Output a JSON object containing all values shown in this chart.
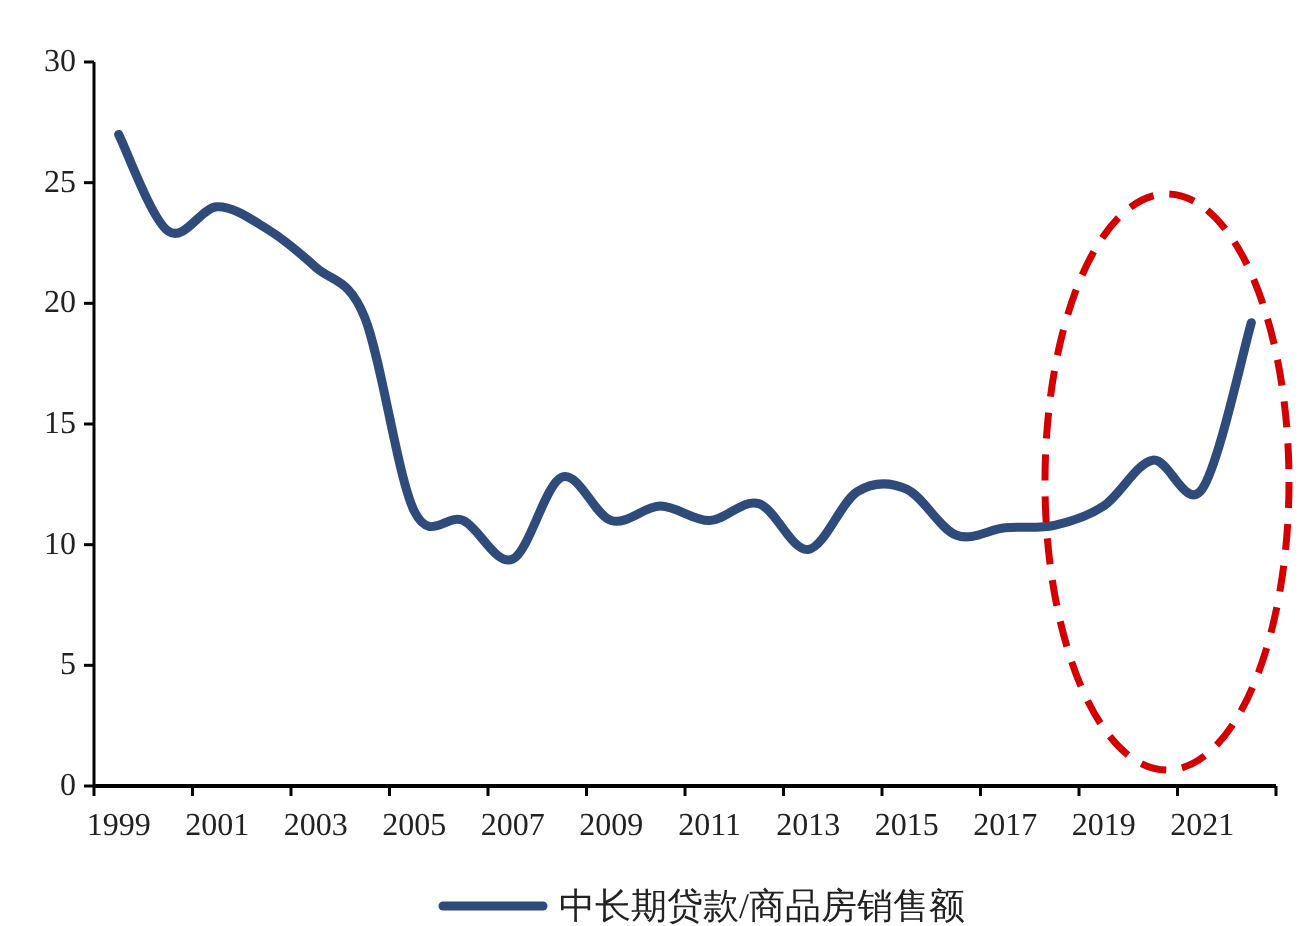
{
  "chart_data": {
    "type": "line",
    "categories": [
      "1999",
      null,
      "2001",
      null,
      "2003",
      null,
      "2005",
      null,
      "2007",
      null,
      "2009",
      null,
      "2011",
      null,
      "2013",
      null,
      "2015",
      null,
      "2017",
      null,
      "2019",
      null,
      "2021",
      null
    ],
    "series": [
      {
        "name": "中长期贷款/商品房销售额",
        "color": "#2f4b7c",
        "values": [
          27.0,
          23.0,
          24.0,
          23.1,
          21.5,
          19.4,
          11.4,
          11.0,
          9.4,
          12.8,
          11.0,
          11.6,
          11.0,
          11.7,
          9.8,
          12.2,
          12.3,
          10.4,
          10.7,
          10.8,
          11.6,
          13.5,
          12.3,
          19.2
        ]
      }
    ],
    "ylim": [
      0,
      30
    ],
    "yticks": [
      0,
      5,
      10,
      15,
      20,
      25,
      30
    ],
    "legend": "bottom"
  }
}
